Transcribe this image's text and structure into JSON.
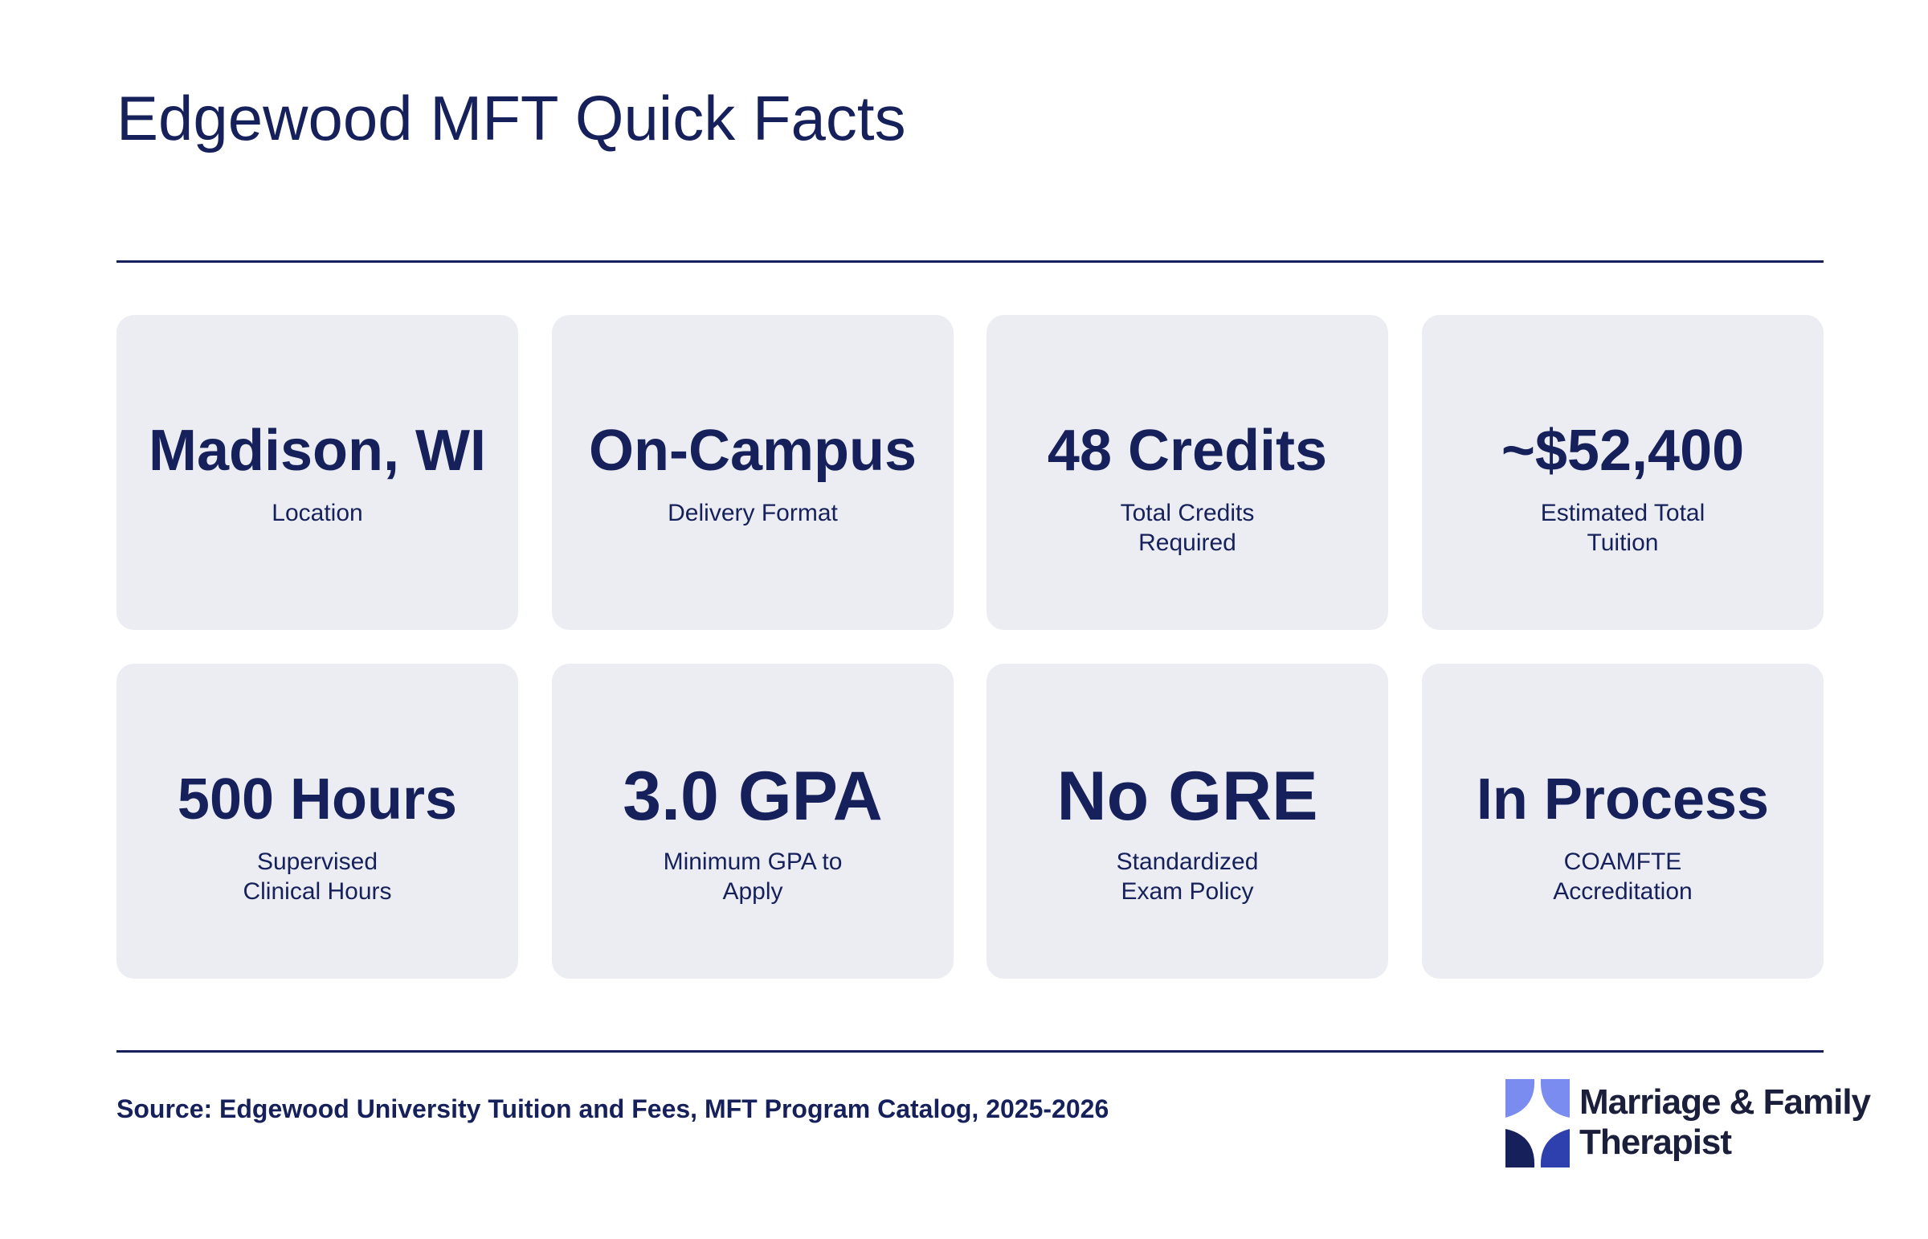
{
  "page": {
    "title": "Edgewood MFT Quick Facts",
    "source": "Source: Edgewood University Tuition and Fees, MFT Program Catalog, 2025-2026"
  },
  "cards": [
    {
      "value": "Madison, WI",
      "label": "Location"
    },
    {
      "value": "On-Campus",
      "label": "Delivery Format"
    },
    {
      "value": "48 Credits",
      "label": "Total Credits Required"
    },
    {
      "value": "~$52,400",
      "label": "Estimated Total Tuition"
    },
    {
      "value": "500 Hours",
      "label": "Supervised Clinical Hours"
    },
    {
      "value": "3.0 GPA",
      "label": "Minimum GPA to Apply"
    },
    {
      "value": "No GRE",
      "label": "Standardized Exam Policy"
    },
    {
      "value": "In Process",
      "label": "COAMFTE Accreditation"
    }
  ],
  "logo": {
    "line1": "Marriage & Family",
    "line2": "Therapist",
    "icon": "mft-logo-icon",
    "colors": {
      "light": "#7b8cf0",
      "mid": "#2e3fae",
      "dark": "#16205a"
    }
  },
  "colors": {
    "text": "#16205a",
    "card_background": "#ecedf2",
    "rule": "#16205a"
  }
}
